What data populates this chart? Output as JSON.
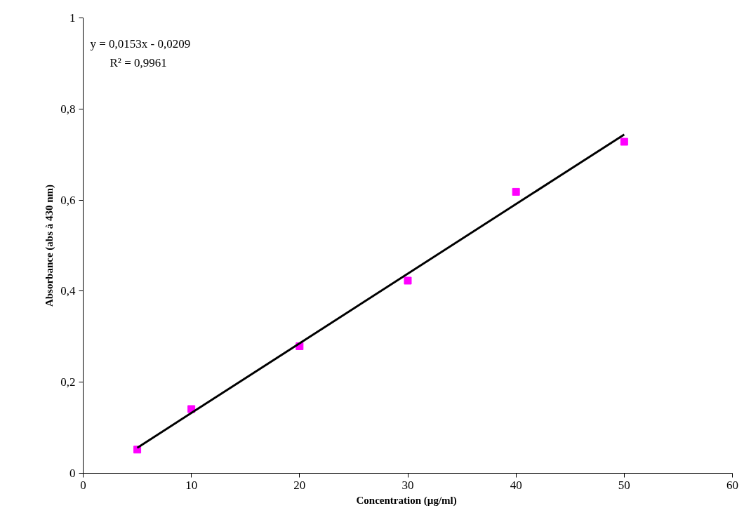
{
  "chart_data": {
    "type": "scatter",
    "xlabel": "Concentration  (µg/ml)",
    "ylabel": "Absorbance (abs à 430 nm)",
    "x": [
      5,
      10,
      20,
      30,
      40,
      50
    ],
    "series": [
      {
        "color": "#ff00ff",
        "values": [
          0.052,
          0.141,
          0.279,
          0.423,
          0.618,
          0.728
        ],
        "marker": "square"
      },
      {
        "type": "line",
        "color": "#000000",
        "x": [
          5,
          50
        ],
        "values": [
          0.056,
          0.744
        ],
        "marker": "none",
        "line_style": "solid"
      }
    ],
    "annotations": [
      "y = 0,0153x - 0,0209",
      "R² = 0,9961"
    ],
    "xlim": [
      0,
      60
    ],
    "xticks": [
      0,
      10,
      20,
      30,
      40,
      50,
      60
    ],
    "ylim": [
      0,
      1
    ],
    "yticks": [
      0,
      {
        "value": 0.2,
        "label": "0,2"
      },
      {
        "value": 0.4,
        "label": "0,4"
      },
      {
        "value": 0.6,
        "label": "0,6"
      },
      {
        "value": 0.8,
        "label": "0,8"
      },
      1
    ],
    "grid": false
  }
}
